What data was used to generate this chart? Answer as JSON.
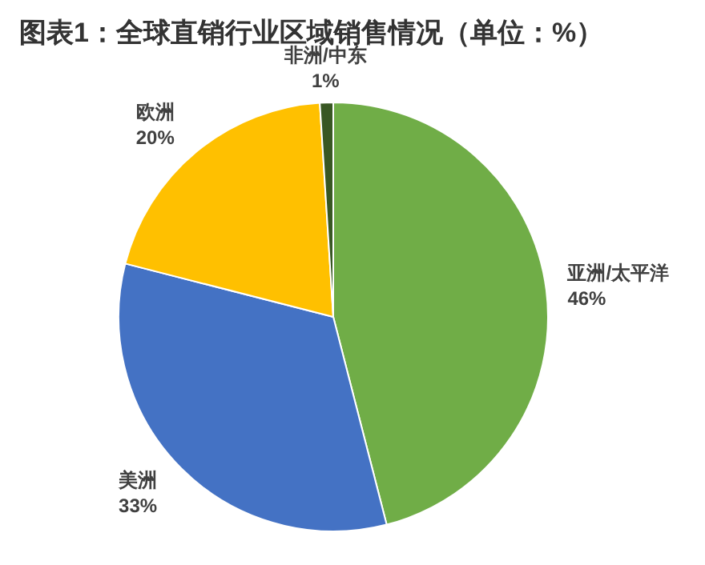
{
  "chart_data": {
    "type": "pie",
    "title": "图表1：全球直销行业区域销售情况（单位：%）",
    "categories": [
      "亚洲/太平洋",
      "美洲",
      "欧洲",
      "非洲/中东"
    ],
    "values": [
      46,
      33,
      20,
      1
    ],
    "value_labels": [
      "46%",
      "33%",
      "20%",
      "1%"
    ],
    "colors": [
      "#70ad47",
      "#4472c4",
      "#ffc000",
      "#385723"
    ]
  }
}
